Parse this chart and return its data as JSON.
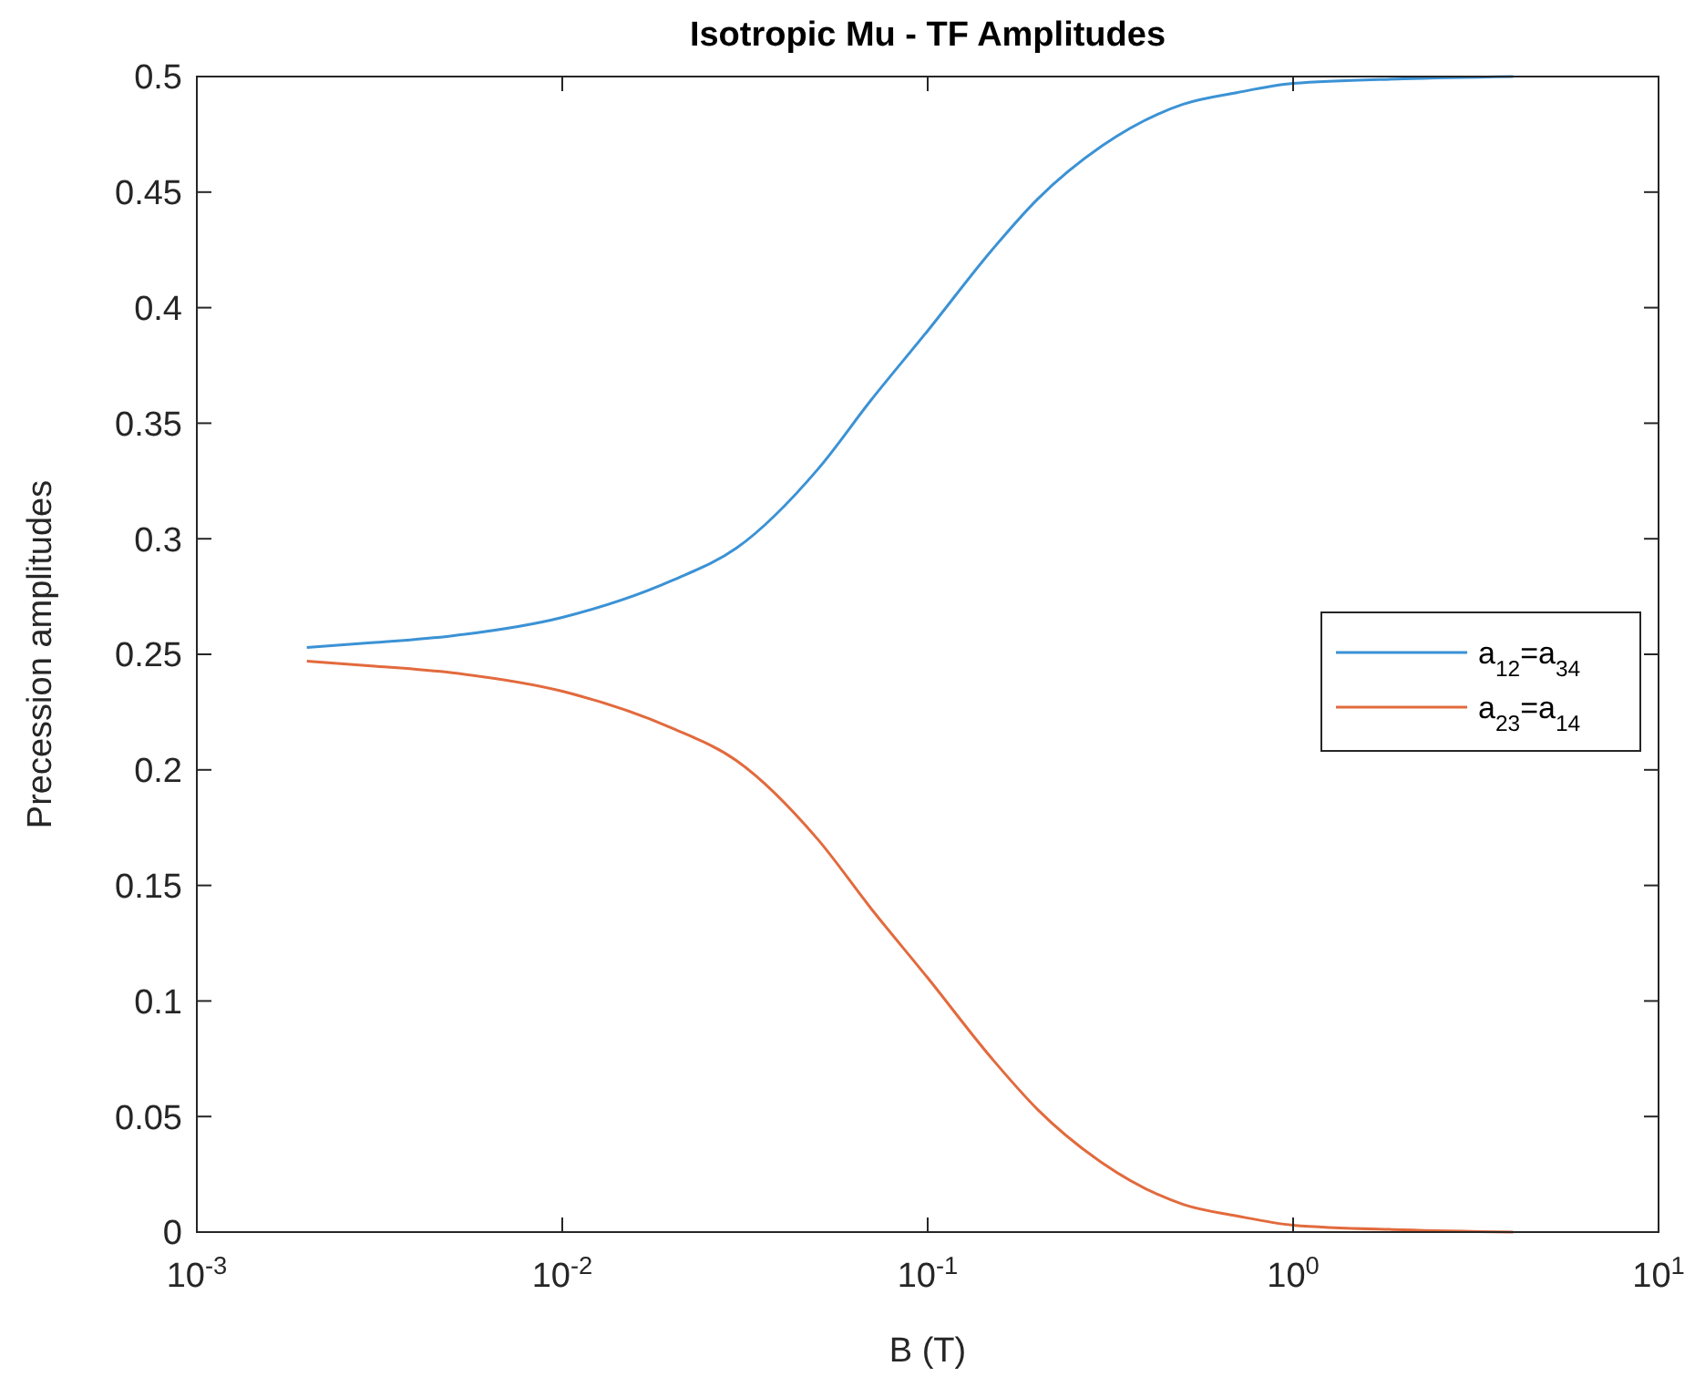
{
  "chart_data": {
    "type": "line",
    "title": "Isotropic Mu - TF Amplitudes",
    "xlabel": "B (T)",
    "ylabel": "Precession amplitudes",
    "log": "x",
    "xlim": [
      0.001,
      10
    ],
    "ylim": [
      0,
      0.5
    ],
    "xticks": [
      {
        "value": 0.001,
        "label": "10$^{-3}$"
      },
      {
        "value": 0.01,
        "label": "10$^{-2}$"
      },
      {
        "value": 0.1,
        "label": "10$^{-1}$"
      },
      {
        "value": 1,
        "label": "10$^{0}$"
      },
      {
        "value": 10,
        "label": "10$^{1}$"
      }
    ],
    "yticks": [
      0,
      0.05,
      0.1,
      0.15,
      0.2,
      0.25,
      0.3,
      0.35,
      0.4,
      0.45,
      0.5
    ],
    "x": [
      0.002,
      0.003,
      0.005,
      0.01,
      0.02,
      0.03,
      0.05,
      0.07,
      0.1,
      0.15,
      0.2,
      0.3,
      0.5,
      0.7,
      1,
      2,
      4
    ],
    "legend": "right",
    "grid": false,
    "series": [
      {
        "name": "a$_{12}$=a$_{34}$",
        "color": "#3b92d5",
        "values": [
          0.253,
          0.255,
          0.258,
          0.266,
          0.282,
          0.296,
          0.33,
          0.36,
          0.39,
          0.425,
          0.447,
          0.47,
          0.488,
          0.493,
          0.497,
          0.499,
          0.5
        ]
      },
      {
        "name": "a$_{23}$=a$_{14}$",
        "color": "#e26a3d",
        "values": [
          0.247,
          0.245,
          0.242,
          0.234,
          0.218,
          0.204,
          0.17,
          0.14,
          0.11,
          0.075,
          0.053,
          0.03,
          0.012,
          0.007,
          0.003,
          0.001,
          0
        ]
      }
    ]
  }
}
